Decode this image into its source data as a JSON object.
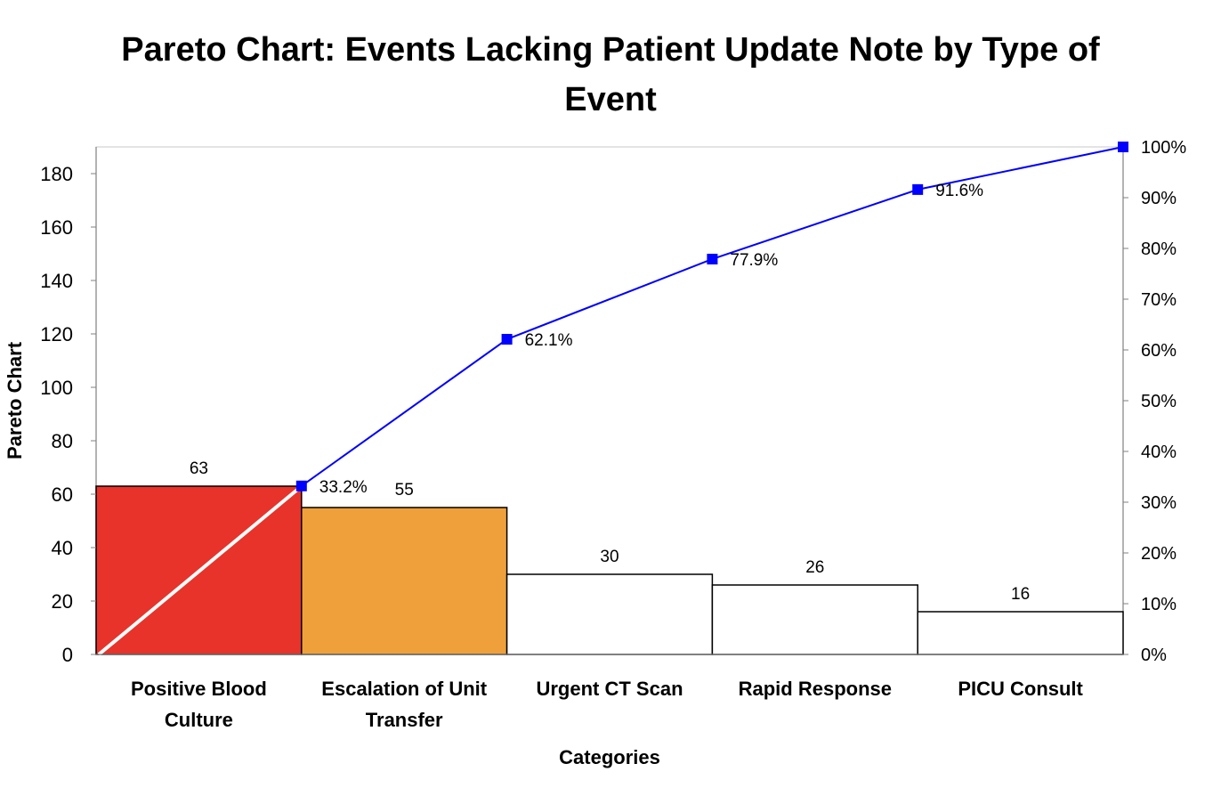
{
  "chart_data": {
    "type": "bar",
    "title": "Pareto Chart: Events Lacking Patient Update Note by Type of Event",
    "xlabel": "Categories",
    "ylabel": "Pareto Chart",
    "ylim": [
      0,
      190
    ],
    "yticks": [
      0,
      20,
      40,
      60,
      80,
      100,
      120,
      140,
      160,
      180
    ],
    "y2lim": [
      0,
      100
    ],
    "y2ticks": [
      "0%",
      "10%",
      "20%",
      "30%",
      "40%",
      "50%",
      "60%",
      "70%",
      "80%",
      "90%",
      "100%"
    ],
    "categories": [
      [
        "Positive Blood",
        "Culture"
      ],
      [
        "Escalation of Unit",
        "Transfer"
      ],
      [
        "Urgent CT Scan"
      ],
      [
        "Rapid Response"
      ],
      [
        "PICU Consult"
      ]
    ],
    "values": [
      63,
      55,
      30,
      26,
      16
    ],
    "bar_colors": [
      "#e8332a",
      "#f0a03a",
      "#ffffff",
      "#ffffff",
      "#ffffff"
    ],
    "cumulative_percent": [
      33.2,
      62.1,
      77.9,
      91.6,
      100
    ],
    "cumulative_labels": [
      "33.2%",
      "62.1%",
      "77.9%",
      "91.6%",
      ""
    ],
    "line_color": "#0000ff",
    "grid": false,
    "legend": "none"
  }
}
